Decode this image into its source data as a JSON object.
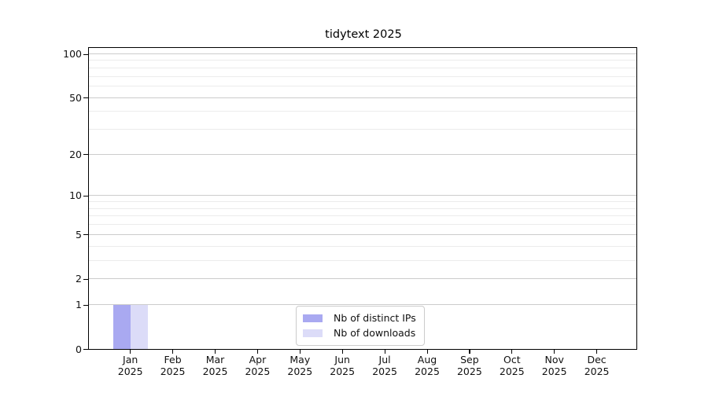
{
  "figure": {
    "background": "#ffffff"
  },
  "chart_data": {
    "type": "bar",
    "title": "tidytext 2025",
    "categories": [
      "Jan 2025",
      "Feb 2025",
      "Mar 2025",
      "Apr 2025",
      "May 2025",
      "Jun 2025",
      "Jul 2025",
      "Aug 2025",
      "Sep 2025",
      "Oct 2025",
      "Nov 2025",
      "Dec 2025"
    ],
    "series": [
      {
        "name": "Nb of distinct IPs",
        "color": "#a9a9f1",
        "values": [
          1,
          0,
          0,
          0,
          0,
          0,
          0,
          0,
          0,
          0,
          0,
          0
        ]
      },
      {
        "name": "Nb of downloads",
        "color": "#dcdcf8",
        "values": [
          1,
          0,
          0,
          0,
          0,
          0,
          0,
          0,
          0,
          0,
          0,
          0
        ]
      }
    ],
    "xlabel": "",
    "ylabel": "",
    "yscale": "log1p",
    "ylim": [
      0,
      112
    ],
    "yticks": [
      0,
      1,
      2,
      5,
      10,
      20,
      50,
      100
    ],
    "yticks_minor": [
      3,
      4,
      6,
      7,
      8,
      9,
      30,
      40,
      60,
      70,
      80,
      90
    ],
    "grid": "horizontal",
    "legend": {
      "position": "lower center"
    },
    "colors": {
      "grid_major": "#cccccc",
      "grid_minor": "#ececec",
      "spine": "#000000"
    }
  }
}
